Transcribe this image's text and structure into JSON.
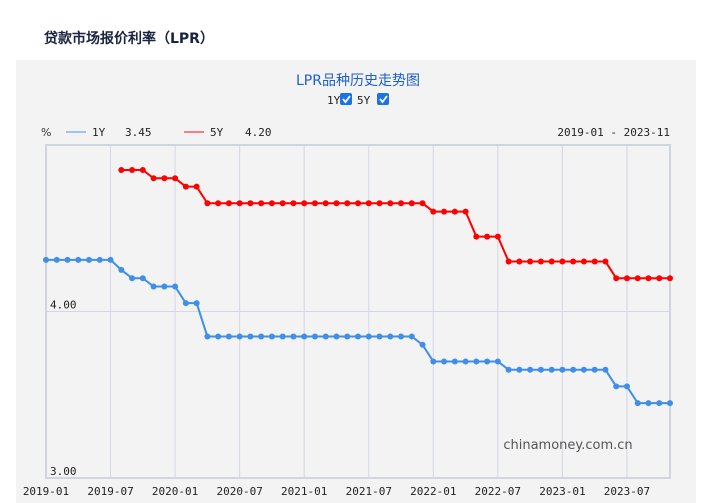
{
  "page_title": "贷款市场报价利率（LPR）",
  "chart_data": {
    "type": "line",
    "title": "LPR品种历史走势图",
    "unit_label": "%",
    "toggles": [
      {
        "label": "1Y",
        "checked": true
      },
      {
        "label": "5Y",
        "checked": true
      }
    ],
    "range_label": "2019-01 - 2023-11",
    "watermark": "chinamoney.com.cn",
    "ylim": [
      3.0,
      5.0
    ],
    "y_ticks": [
      "3.00",
      "4.00"
    ],
    "x_ticks": [
      "2019-01",
      "2019-07",
      "2020-01",
      "2020-07",
      "2021-01",
      "2021-07",
      "2022-01",
      "2022-07",
      "2023-01",
      "2023-07"
    ],
    "x_start": "2019-01",
    "x_end": "2023-11",
    "grid": true,
    "series": [
      {
        "name": "1Y",
        "latest": "3.45",
        "color": "#3f8fe8",
        "legend_color": "#9dc3f2",
        "values": [
          4.31,
          4.31,
          4.31,
          4.31,
          4.31,
          4.31,
          4.31,
          4.25,
          4.2,
          4.2,
          4.15,
          4.15,
          4.15,
          4.05,
          4.05,
          3.85,
          3.85,
          3.85,
          3.85,
          3.85,
          3.85,
          3.85,
          3.85,
          3.85,
          3.85,
          3.85,
          3.85,
          3.85,
          3.85,
          3.85,
          3.85,
          3.85,
          3.85,
          3.85,
          3.85,
          3.8,
          3.7,
          3.7,
          3.7,
          3.7,
          3.7,
          3.7,
          3.7,
          3.65,
          3.65,
          3.65,
          3.65,
          3.65,
          3.65,
          3.65,
          3.65,
          3.65,
          3.65,
          3.55,
          3.55,
          3.45,
          3.45,
          3.45,
          3.45
        ]
      },
      {
        "name": "5Y",
        "latest": "4.20",
        "color": "#ff0000",
        "legend_color": "#f58080",
        "values": [
          null,
          null,
          null,
          null,
          null,
          null,
          null,
          4.85,
          4.85,
          4.85,
          4.8,
          4.8,
          4.8,
          4.75,
          4.75,
          4.65,
          4.65,
          4.65,
          4.65,
          4.65,
          4.65,
          4.65,
          4.65,
          4.65,
          4.65,
          4.65,
          4.65,
          4.65,
          4.65,
          4.65,
          4.65,
          4.65,
          4.65,
          4.65,
          4.65,
          4.65,
          4.6,
          4.6,
          4.6,
          4.6,
          4.45,
          4.45,
          4.45,
          4.3,
          4.3,
          4.3,
          4.3,
          4.3,
          4.3,
          4.3,
          4.3,
          4.3,
          4.3,
          4.2,
          4.2,
          4.2,
          4.2,
          4.2,
          4.2
        ]
      }
    ]
  }
}
